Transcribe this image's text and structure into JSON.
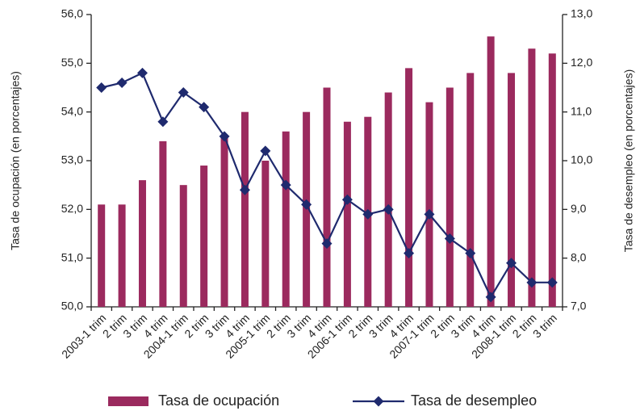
{
  "chart_data": {
    "type": "bar",
    "y_label": "Tasa de ocupación (en porcentajes)",
    "y2_label": "Tasa de desempleo (en porcentajes)",
    "categories": [
      "2003-1 trim",
      "2 trim",
      "3 trim",
      "4 trim",
      "2004-1 trim",
      "2 trim",
      "3 trim",
      "4 trim",
      "2005-1 trim",
      "2 trim",
      "3 trim",
      "4 trim",
      "2006-1 trim",
      "2 trim",
      "3 trim",
      "4 trim",
      "2007-1 trim",
      "2 trim",
      "3 trim",
      "4 trim",
      "2008-1 trim",
      "2 trim",
      "3 trim"
    ],
    "series": [
      {
        "name": "Tasa de ocupación",
        "type": "bar",
        "color": "#9b2a5e",
        "values": [
          52.1,
          52.1,
          52.6,
          53.4,
          52.5,
          52.9,
          53.5,
          54.0,
          53.0,
          53.6,
          54.0,
          54.5,
          53.8,
          53.9,
          54.4,
          54.9,
          54.2,
          54.5,
          54.8,
          55.55,
          54.8,
          55.3,
          55.2
        ]
      },
      {
        "name": "Tasa de desempleo",
        "type": "line",
        "axis": "y2",
        "color": "#1f2a6e",
        "values": [
          11.5,
          11.6,
          11.8,
          10.8,
          11.4,
          11.1,
          10.5,
          9.4,
          10.2,
          9.5,
          9.1,
          8.3,
          9.2,
          8.9,
          9.0,
          8.1,
          8.9,
          8.4,
          8.1,
          7.2,
          7.9,
          7.5,
          7.5
        ]
      }
    ],
    "ylim": [
      50,
      56
    ],
    "yticks": [
      {
        "value": 50,
        "label": "50,0"
      },
      {
        "value": 51,
        "label": "51,0"
      },
      {
        "value": 52,
        "label": "52,0"
      },
      {
        "value": 53,
        "label": "53,0"
      },
      {
        "value": 54,
        "label": "54,0"
      },
      {
        "value": 55,
        "label": "55,0"
      },
      {
        "value": 56,
        "label": "56,0"
      }
    ],
    "y2lim": [
      7,
      13
    ],
    "y2ticks": [
      {
        "value": 7,
        "label": "7,0"
      },
      {
        "value": 8,
        "label": "8,0"
      },
      {
        "value": 9,
        "label": "9,0"
      },
      {
        "value": 10,
        "label": "10,0"
      },
      {
        "value": 11,
        "label": "11,0"
      },
      {
        "value": 12,
        "label": "12,0"
      },
      {
        "value": 13,
        "label": "13,0"
      }
    ],
    "grid": false,
    "legend": "bottom"
  }
}
